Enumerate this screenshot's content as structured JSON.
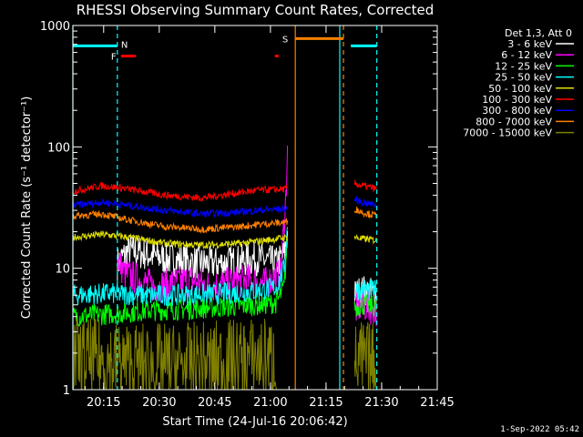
{
  "chart_data": {
    "type": "line",
    "title": "RHESSI Observing Summary Count Rates, Corrected",
    "xlabel": "Start Time (24-Jul-16 20:06:42)",
    "ylabel": "Corrected Count Rate (s⁻¹ detector⁻¹)",
    "yscale": "log",
    "ylim": [
      1,
      1000
    ],
    "xlim_minutes": [
      0,
      98.3
    ],
    "x_ticks": [
      {
        "label": "20:15",
        "min": 8.3
      },
      {
        "label": "20:30",
        "min": 23.3
      },
      {
        "label": "20:45",
        "min": 38.3
      },
      {
        "label": "21:00",
        "min": 53.3
      },
      {
        "label": "21:15",
        "min": 68.3
      },
      {
        "label": "21:30",
        "min": 83.3
      },
      {
        "label": "21:45",
        "min": 98.3
      }
    ],
    "y_ticks": [
      {
        "label": "1",
        "value": 1
      },
      {
        "label": "10",
        "value": 10
      },
      {
        "label": "100",
        "value": 100
      },
      {
        "label": "1000",
        "value": 1000
      }
    ],
    "legend_header": "Det 1,3, Att 0",
    "legend_position": "top-right",
    "series": [
      {
        "name": "3 - 6 keV",
        "color": "#ffffff",
        "points": [
          [
            12,
            11
          ],
          [
            15,
            14
          ],
          [
            20,
            13
          ],
          [
            25,
            12
          ],
          [
            30,
            11.5
          ],
          [
            35,
            11
          ],
          [
            40,
            11
          ],
          [
            45,
            11.5
          ],
          [
            50,
            12
          ],
          [
            55,
            11
          ],
          [
            57,
            13
          ],
          [
            58,
            20
          ]
        ],
        "seg2": [
          [
            76,
            6
          ],
          [
            78,
            6.5
          ],
          [
            82,
            6
          ]
        ]
      },
      {
        "name": "6 - 12 keV",
        "color": "#ff00ff",
        "points": [
          [
            12,
            12
          ],
          [
            14,
            9
          ],
          [
            18,
            8
          ],
          [
            22,
            7
          ],
          [
            27,
            7.5
          ],
          [
            32,
            8
          ],
          [
            37,
            7
          ],
          [
            42,
            7.5
          ],
          [
            47,
            8
          ],
          [
            52,
            7.5
          ],
          [
            56,
            9
          ],
          [
            57.5,
            40
          ],
          [
            58,
            140
          ]
        ],
        "seg2": [
          [
            76,
            4.5
          ],
          [
            78,
            5
          ],
          [
            82,
            4.5
          ]
        ]
      },
      {
        "name": "12 - 25 keV",
        "color": "#00ff00",
        "points": [
          [
            0,
            4
          ],
          [
            10,
            4.2
          ],
          [
            20,
            4.5
          ],
          [
            30,
            4.6
          ],
          [
            40,
            4.8
          ],
          [
            50,
            5
          ],
          [
            55,
            5.2
          ],
          [
            57,
            7
          ],
          [
            58,
            20
          ]
        ],
        "seg2": [
          [
            76,
            4.8
          ],
          [
            78,
            5
          ],
          [
            82,
            4.8
          ]
        ]
      },
      {
        "name": "25 - 50 keV",
        "color": "#00ffff",
        "points": [
          [
            0,
            6
          ],
          [
            10,
            6.2
          ],
          [
            20,
            6
          ],
          [
            30,
            6
          ],
          [
            40,
            6.2
          ],
          [
            50,
            6.5
          ],
          [
            55,
            7
          ],
          [
            57,
            10
          ],
          [
            58,
            24
          ]
        ],
        "seg2": [
          [
            76,
            6.5
          ],
          [
            78,
            6.8
          ],
          [
            82,
            6.5
          ]
        ]
      },
      {
        "name": "50 - 100 keV",
        "color": "#e0e000",
        "points": [
          [
            0,
            18
          ],
          [
            8,
            19
          ],
          [
            15,
            18
          ],
          [
            25,
            16
          ],
          [
            35,
            15.5
          ],
          [
            45,
            16
          ],
          [
            52,
            17
          ],
          [
            58,
            18
          ]
        ],
        "seg2": [
          [
            76,
            18
          ],
          [
            78,
            17.5
          ],
          [
            82,
            17
          ]
        ]
      },
      {
        "name": "100 - 300 keV",
        "color": "#ff0000",
        "points": [
          [
            0,
            43
          ],
          [
            8,
            48
          ],
          [
            15,
            45
          ],
          [
            25,
            40
          ],
          [
            35,
            38
          ],
          [
            45,
            42
          ],
          [
            50,
            44
          ],
          [
            58,
            45
          ]
        ],
        "seg2": [
          [
            76,
            50
          ],
          [
            78,
            48
          ],
          [
            82,
            45
          ]
        ]
      },
      {
        "name": "300 - 800 keV",
        "color": "#0000ff",
        "points": [
          [
            0,
            33
          ],
          [
            8,
            35
          ],
          [
            15,
            33
          ],
          [
            25,
            30
          ],
          [
            35,
            28
          ],
          [
            45,
            29
          ],
          [
            50,
            30
          ],
          [
            58,
            31
          ]
        ],
        "seg2": [
          [
            76,
            37
          ],
          [
            78,
            35
          ],
          [
            82,
            33
          ]
        ]
      },
      {
        "name": "800 - 7000 keV",
        "color": "#ff8000",
        "points": [
          [
            0,
            27
          ],
          [
            8,
            28
          ],
          [
            15,
            25
          ],
          [
            25,
            22
          ],
          [
            35,
            21
          ],
          [
            45,
            22
          ],
          [
            50,
            23
          ],
          [
            58,
            24
          ]
        ],
        "seg2": [
          [
            76,
            31
          ],
          [
            78,
            29
          ],
          [
            82,
            27
          ]
        ]
      },
      {
        "name": "7000 - 15000 keV",
        "color": "#808000",
        "points": [
          [
            0,
            1.8
          ],
          [
            10,
            1.7
          ],
          [
            20,
            1.6
          ],
          [
            30,
            1.6
          ],
          [
            40,
            1.7
          ],
          [
            50,
            1.8
          ],
          [
            55,
            1.8
          ]
        ],
        "seg2": [
          [
            76,
            1.6
          ],
          [
            78,
            1.7
          ],
          [
            82,
            1.6
          ]
        ]
      }
    ],
    "flags": [
      {
        "code": "N",
        "color": "#00ffff",
        "from_min": 0,
        "to_min": 12,
        "value": 680,
        "start_only": false
      },
      {
        "code": "N",
        "color": "#00ffff",
        "from_min": 75,
        "to_min": 82,
        "value": 680,
        "start_only": false
      },
      {
        "code": "F",
        "color": "#ff0000",
        "from_min": 13,
        "to_min": 17,
        "value": 560
      },
      {
        "code": "F",
        "color": "#ff0000",
        "from_min": 54.5,
        "to_min": 55.5,
        "value": 560
      },
      {
        "code": "S",
        "color": "#ff8000",
        "from_min": 60,
        "to_min": 73,
        "value": 780
      }
    ],
    "vlines": [
      {
        "min": 0,
        "color": "#00ffff",
        "dash": false
      },
      {
        "min": 12,
        "color": "#00ffff",
        "dash": true
      },
      {
        "min": 60,
        "color": "#ff8000",
        "dash": false
      },
      {
        "min": 72,
        "color": "#00ffff",
        "dash": false
      },
      {
        "min": 73,
        "color": "#ff8000",
        "dash": true
      },
      {
        "min": 82,
        "color": "#00ffff",
        "dash": true
      }
    ],
    "footer": "1-Sep-2022 05:42"
  }
}
